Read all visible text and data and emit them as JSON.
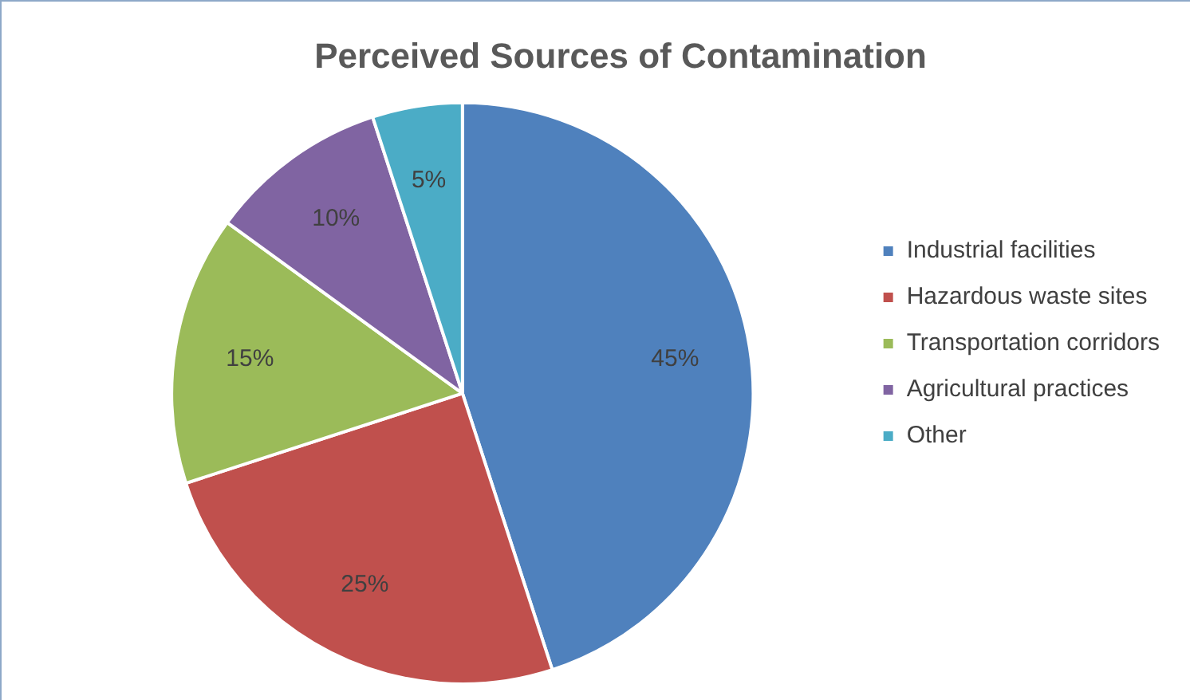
{
  "chart_data": {
    "type": "pie",
    "title": "Perceived Sources of Contamination",
    "categories": [
      "Industrial facilities",
      "Hazardous waste sites",
      "Transportation corridors",
      "Agricultural practices",
      "Other"
    ],
    "values": [
      45,
      25,
      15,
      10,
      5
    ],
    "colors": [
      "#4f81bd",
      "#c0504d",
      "#9bbb59",
      "#8064a2",
      "#4bacc6"
    ],
    "value_labels": [
      "45%",
      "25%",
      "15%",
      "10%",
      "5%"
    ],
    "legend": "right"
  }
}
